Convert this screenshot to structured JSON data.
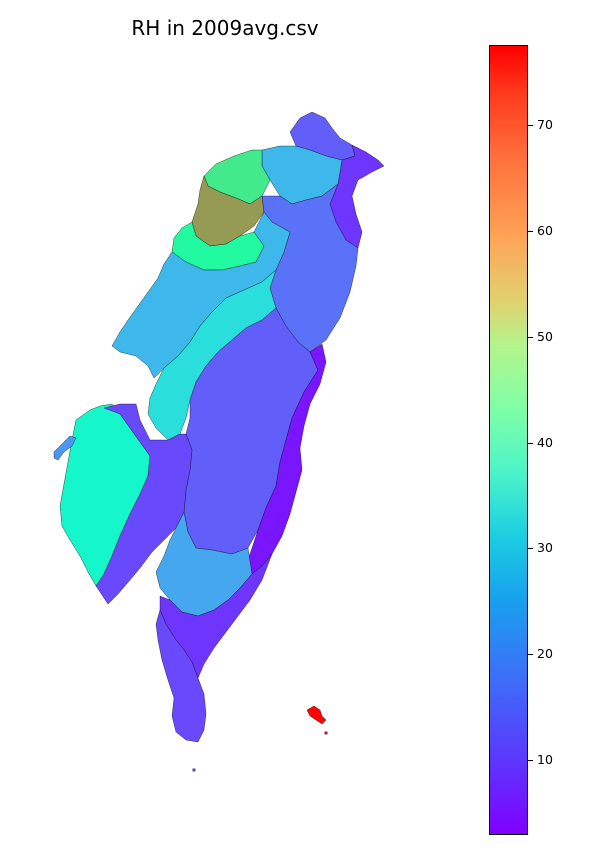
{
  "title": "RH in 2009avg.csv",
  "colorbar": {
    "colormap": "rainbow",
    "min": 3,
    "max": 77.5,
    "ticks": [
      {
        "value": 10,
        "label": "10"
      },
      {
        "value": 20,
        "label": "20"
      },
      {
        "value": 30,
        "label": "30"
      },
      {
        "value": 40,
        "label": "40"
      },
      {
        "value": 50,
        "label": "50"
      },
      {
        "value": 60,
        "label": "60"
      },
      {
        "value": 70,
        "label": "70"
      }
    ]
  },
  "regions": [
    {
      "name": "north-tip",
      "value": 12
    },
    {
      "name": "northeast-coast",
      "value": 8
    },
    {
      "name": "taipei-basin",
      "value": 22
    },
    {
      "name": "northwest-coast",
      "value": 50
    },
    {
      "name": "taoyuan-hsinchu-hotspot",
      "value": 62
    },
    {
      "name": "hsinchu-foothills",
      "value": 45
    },
    {
      "name": "east-central-mountains",
      "value": 14
    },
    {
      "name": "west-coastal-plain",
      "value": 22
    },
    {
      "name": "central-basin",
      "value": 28
    },
    {
      "name": "central-mountains",
      "value": 12
    },
    {
      "name": "east-rift",
      "value": 5
    },
    {
      "name": "southwest-coast",
      "value": 34
    },
    {
      "name": "southwest-inland",
      "value": 10
    },
    {
      "name": "south-central",
      "value": 20
    },
    {
      "name": "south-mountains",
      "value": 8
    },
    {
      "name": "southern-tip",
      "value": 10
    },
    {
      "name": "penghu",
      "value": 18
    },
    {
      "name": "green-island",
      "value": 77
    }
  ]
}
